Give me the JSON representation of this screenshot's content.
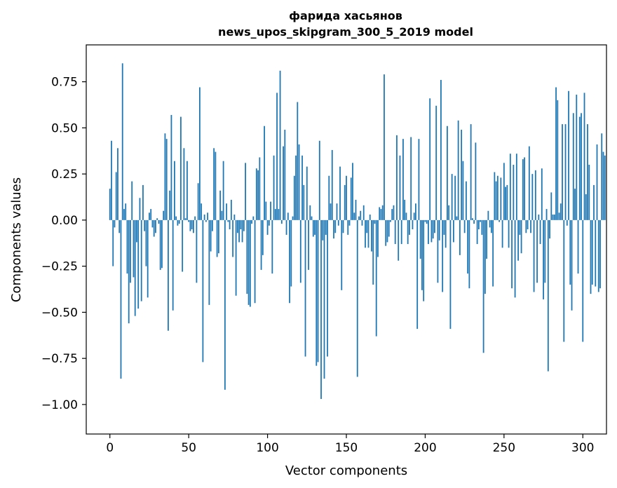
{
  "chart_data": {
    "type": "bar",
    "title_line1": "фарида хасьянов",
    "title_line2": "news_upos_skipgram_300_5_2019 model",
    "xlabel": "Vector components",
    "ylabel": "Components values",
    "xlim": [
      -15,
      315
    ],
    "ylim": [
      -1.16,
      0.95
    ],
    "xticks": [
      0,
      50,
      100,
      150,
      200,
      250,
      300
    ],
    "xtick_labels": [
      "0",
      "50",
      "100",
      "150",
      "200",
      "250",
      "300"
    ],
    "yticks": [
      -1.0,
      -0.75,
      -0.5,
      -0.25,
      0.0,
      0.25,
      0.5,
      0.75
    ],
    "ytick_labels": [
      "−1.00",
      "−0.75",
      "−0.50",
      "−0.25",
      "0.00",
      "0.25",
      "0.50",
      "0.75"
    ],
    "bar_color": "#1f77b4",
    "grid": false,
    "values": [
      0.17,
      0.43,
      -0.25,
      -0.04,
      0.26,
      0.39,
      -0.07,
      -0.86,
      0.85,
      0.06,
      0.09,
      -0.29,
      -0.56,
      -0.34,
      0.21,
      -0.31,
      -0.52,
      -0.12,
      -0.48,
      0.12,
      -0.44,
      0.19,
      -0.06,
      -0.25,
      -0.42,
      0.04,
      0.06,
      -0.04,
      -0.09,
      -0.07,
      0.01,
      -0.02,
      -0.27,
      -0.26,
      0.05,
      0.47,
      0.44,
      -0.6,
      0.16,
      0.57,
      -0.49,
      0.32,
      0.02,
      -0.03,
      -0.02,
      0.56,
      -0.28,
      0.39,
      0.01,
      0.32,
      -0.01,
      -0.06,
      -0.05,
      -0.07,
      0.02,
      -0.34,
      0.2,
      0.72,
      0.09,
      -0.77,
      0.03,
      -0.01,
      0.04,
      -0.46,
      -0.17,
      -0.06,
      0.39,
      0.37,
      -0.2,
      -0.18,
      0.16,
      0.05,
      0.32,
      -0.92,
      0.09,
      -0.01,
      -0.05,
      0.11,
      -0.2,
      0.03,
      -0.41,
      -0.07,
      -0.12,
      -0.05,
      -0.12,
      -0.06,
      0.31,
      -0.4,
      -0.46,
      -0.47,
      -0.02,
      0.02,
      -0.45,
      0.28,
      0.27,
      0.34,
      -0.27,
      -0.19,
      0.51,
      0.1,
      -0.08,
      -0.03,
      0.1,
      -0.29,
      0.35,
      0.06,
      0.69,
      0.06,
      0.81,
      -0.02,
      0.4,
      0.49,
      -0.08,
      0.04,
      -0.45,
      -0.36,
      0.02,
      0.24,
      0.35,
      0.64,
      0.41,
      -0.34,
      0.35,
      0.19,
      -0.74,
      0.29,
      -0.27,
      0.08,
      0.02,
      -0.09,
      -0.08,
      -0.79,
      -0.77,
      0.43,
      -0.97,
      -0.11,
      -0.86,
      -0.08,
      -0.74,
      0.24,
      0.09,
      0.38,
      -0.1,
      -0.07,
      0.09,
      -0.03,
      0.29,
      -0.38,
      -0.07,
      0.19,
      0.24,
      -0.08,
      -0.03,
      0.23,
      0.31,
      0.04,
      0.11,
      -0.85,
      0.02,
      0.05,
      -0.03,
      0.08,
      -0.15,
      -0.07,
      -0.15,
      0.03,
      -0.17,
      -0.35,
      -0.02,
      -0.63,
      -0.2,
      0.07,
      0.06,
      0.08,
      0.79,
      -0.14,
      -0.12,
      -0.09,
      -0.01,
      0.06,
      0.08,
      -0.13,
      0.46,
      -0.22,
      0.35,
      -0.13,
      0.44,
      0.11,
      0.04,
      -0.13,
      -0.08,
      0.45,
      -0.05,
      0.04,
      0.09,
      -0.59,
      0.44,
      -0.21,
      -0.38,
      -0.44,
      -0.01,
      -0.02,
      -0.13,
      0.66,
      -0.12,
      -0.1,
      -0.07,
      0.62,
      -0.34,
      -0.11,
      0.76,
      -0.39,
      -0.08,
      -0.15,
      0.51,
      0.08,
      -0.59,
      0.25,
      -0.12,
      0.24,
      0.02,
      0.54,
      -0.19,
      0.49,
      0.32,
      -0.07,
      0.21,
      -0.29,
      -0.37,
      0.52,
      0.01,
      -0.02,
      0.42,
      -0.13,
      -0.05,
      -0.01,
      -0.08,
      -0.72,
      -0.4,
      -0.21,
      0.05,
      -0.04,
      -0.07,
      -0.36,
      0.26,
      0.21,
      0.24,
      -0.01,
      0.23,
      -0.15,
      0.31,
      0.18,
      0.19,
      -0.15,
      0.36,
      -0.37,
      0.3,
      -0.42,
      0.36,
      -0.22,
      -0.08,
      -0.18,
      0.33,
      0.34,
      -0.07,
      -0.05,
      0.4,
      -0.07,
      0.25,
      -0.39,
      0.27,
      -0.34,
      0.03,
      -0.13,
      0.28,
      -0.43,
      -0.34,
      0.06,
      -0.82,
      -0.1,
      0.15,
      0.03,
      0.03,
      0.72,
      0.65,
      0.04,
      0.09,
      0.52,
      -0.66,
      0.52,
      -0.03,
      0.7,
      -0.35,
      -0.49,
      0.58,
      0.17,
      0.68,
      -0.29,
      0.56,
      0.58,
      -0.66,
      0.69,
      0.14,
      0.52,
      0.3,
      -0.4,
      -0.35,
      0.19,
      -0.36,
      0.41,
      -0.39,
      -0.37,
      0.47,
      0.37,
      0.35
    ]
  }
}
